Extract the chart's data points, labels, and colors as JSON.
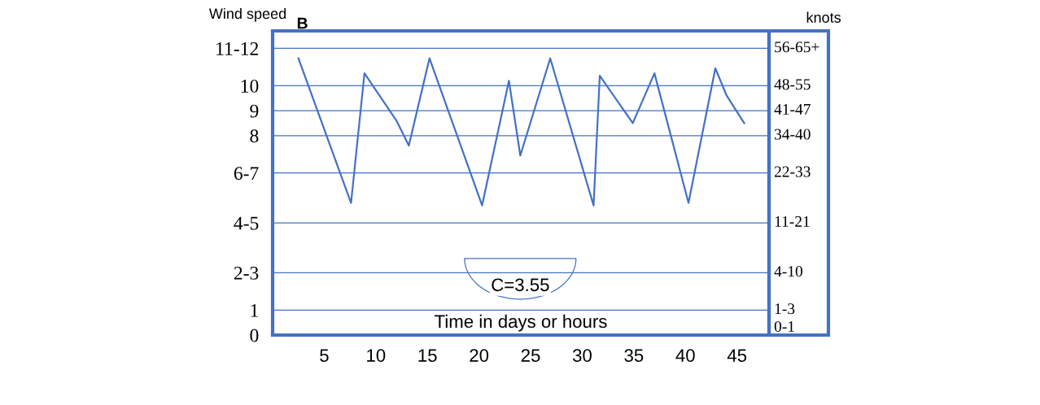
{
  "chart_data": {
    "type": "line",
    "title": "B",
    "ylabel": "Wind speed",
    "xlabel": "Time in days or hours",
    "y2label": "knots",
    "annotations": [
      "C=3.55",
      "0-1",
      "1-3",
      "4-10",
      "11-21",
      "22-33",
      "34-40",
      "41-47",
      "48-55",
      "56-65+"
    ],
    "x": [
      2.5,
      7.6,
      8.9,
      12.0,
      13.2,
      15.2,
      20.3,
      22.9,
      24.0,
      26.9,
      31.1,
      31.7,
      34.9,
      37.0,
      40.3,
      42.9,
      44.0,
      45.7
    ],
    "series": [
      {
        "color": "#4472c4",
        "values": [
          11.1,
          5.3,
          10.5,
          8.6,
          7.6,
          11.1,
          5.2,
          10.2,
          7.2,
          11.1,
          5.2,
          10.4,
          8.5,
          10.5,
          5.3,
          10.7,
          9.6,
          8.5
        ]
      }
    ],
    "xlim": [
      0,
      48.1
    ],
    "xticks": [
      5,
      10,
      15,
      20,
      25,
      30,
      35,
      40,
      45
    ],
    "ylim": [
      0,
      12.2
    ],
    "yticks": [
      0,
      1,
      {
        "value": 2.5,
        "label": "2-3"
      },
      {
        "value": 4.5,
        "label": "4-5"
      },
      {
        "value": 6.5,
        "label": "6-7"
      },
      8,
      9,
      10,
      {
        "value": 11.5,
        "label": "11-12"
      }
    ],
    "grid": "y",
    "legend": false,
    "marker": "none",
    "line_style": "solid"
  }
}
